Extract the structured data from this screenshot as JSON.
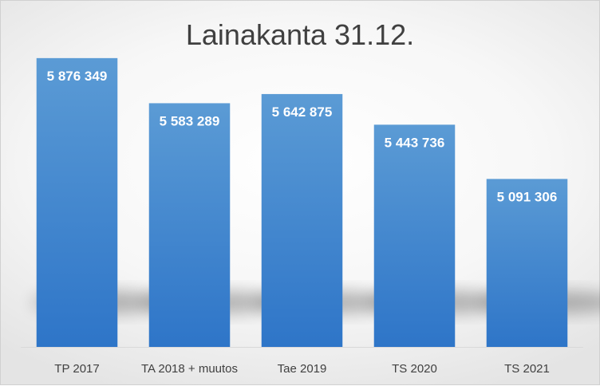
{
  "chart_data": {
    "type": "bar",
    "title": "Lainakanta 31.12.",
    "xlabel": "",
    "ylabel": "",
    "categories": [
      "TP 2017",
      "TA 2018 + muutos",
      "Tae 2019",
      "TS 2020",
      "TS 2021"
    ],
    "values": [
      5876349,
      5583289,
      5642875,
      5443736,
      5091306
    ],
    "data_labels": [
      "5 876 349",
      "5 583 289",
      "5 642 875",
      "5 443 736",
      "5 091 306"
    ],
    "ylim": [
      4000000,
      6000000
    ],
    "grid": false,
    "legend": "none",
    "bar_color_top": "#5b9bd5",
    "bar_color_bottom": "#2e75c8",
    "label_color": "#ffffff",
    "axis_color": "#d9d9d9",
    "tick_label_color": "#404040"
  }
}
